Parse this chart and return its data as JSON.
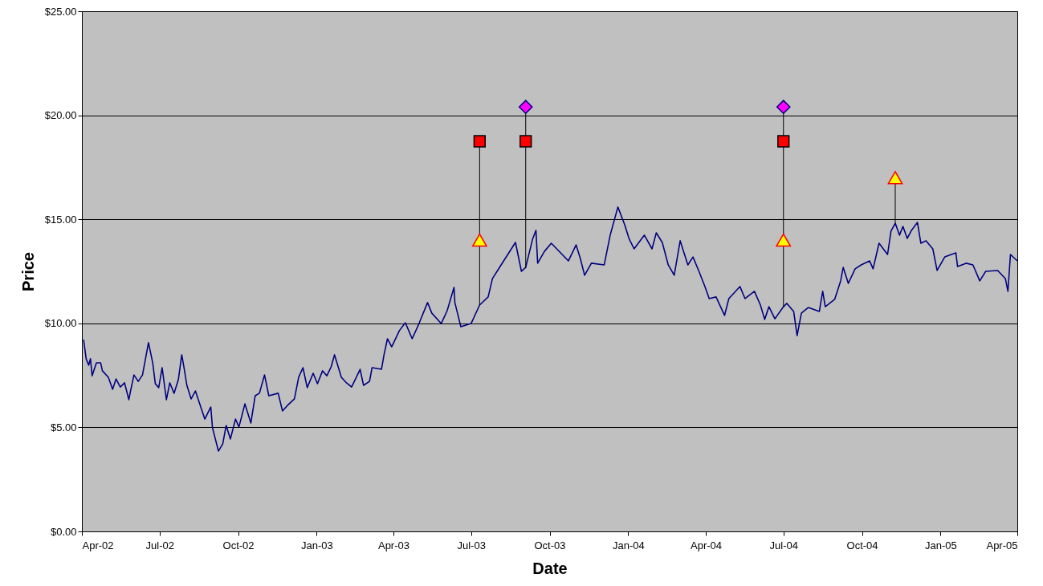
{
  "chart_data": {
    "type": "line",
    "xlabel": "Date",
    "ylabel": "Price",
    "grid": "y",
    "xlim": [
      "2002-04-01",
      "2005-04-01"
    ],
    "ylim": [
      0,
      25
    ],
    "xticks": [
      {
        "value": "2002-04-01",
        "label": "Apr-02"
      },
      {
        "value": "2002-07-01",
        "label": "Jul-02"
      },
      {
        "value": "2002-10-01",
        "label": "Oct-02"
      },
      {
        "value": "2003-01-01",
        "label": "Jan-03"
      },
      {
        "value": "2003-04-01",
        "label": "Apr-03"
      },
      {
        "value": "2003-07-01",
        "label": "Jul-03"
      },
      {
        "value": "2003-10-01",
        "label": "Oct-03"
      },
      {
        "value": "2004-01-01",
        "label": "Jan-04"
      },
      {
        "value": "2004-04-01",
        "label": "Apr-04"
      },
      {
        "value": "2004-07-01",
        "label": "Jul-04"
      },
      {
        "value": "2004-10-01",
        "label": "Oct-04"
      },
      {
        "value": "2005-01-01",
        "label": "Jan-05"
      },
      {
        "value": "2005-04-01",
        "label": "Apr-05"
      }
    ],
    "yticks": [
      {
        "value": 0,
        "label": "$0.00"
      },
      {
        "value": 5,
        "label": "$5.00"
      },
      {
        "value": 10,
        "label": "$10.00"
      },
      {
        "value": 15,
        "label": "$15.00"
      },
      {
        "value": 20,
        "label": "$20.00"
      },
      {
        "value": 25,
        "label": "$25.00"
      }
    ],
    "series": [
      {
        "color": "#000080",
        "marker": "none",
        "x": [
          "2002-04-03",
          "2002-04-06",
          "2002-04-09",
          "2002-04-11",
          "2002-04-13",
          "2002-04-18",
          "2002-04-23",
          "2002-04-25",
          "2002-05-02",
          "2002-05-07",
          "2002-05-11",
          "2002-05-16",
          "2002-05-21",
          "2002-05-26",
          "2002-05-28",
          "2002-06-01",
          "2002-06-06",
          "2002-06-11",
          "2002-06-18",
          "2002-06-23",
          "2002-06-26",
          "2002-06-30",
          "2002-07-04",
          "2002-07-09",
          "2002-07-13",
          "2002-07-18",
          "2002-07-23",
          "2002-07-27",
          "2002-07-30",
          "2002-08-02",
          "2002-08-07",
          "2002-08-12",
          "2002-08-23",
          "2002-08-30",
          "2002-09-01",
          "2002-09-08",
          "2002-09-13",
          "2002-09-17",
          "2002-09-22",
          "2002-09-28",
          "2002-10-02",
          "2002-10-09",
          "2002-10-16",
          "2002-10-21",
          "2002-10-26",
          "2002-11-01",
          "2002-11-06",
          "2002-11-17",
          "2002-11-22",
          "2002-11-28",
          "2002-12-06",
          "2002-12-11",
          "2002-12-16",
          "2002-12-21",
          "2002-12-28",
          "2003-01-02",
          "2003-01-08",
          "2003-01-13",
          "2003-01-18",
          "2003-01-22",
          "2003-01-30",
          "2003-02-05",
          "2003-02-11",
          "2003-02-21",
          "2003-02-25",
          "2003-03-04",
          "2003-03-07",
          "2003-03-18",
          "2003-03-21",
          "2003-03-25",
          "2003-03-30",
          "2003-04-08",
          "2003-04-15",
          "2003-04-23",
          "2003-05-01",
          "2003-05-11",
          "2003-05-16",
          "2003-05-27",
          "2003-06-03",
          "2003-06-11",
          "2003-06-12",
          "2003-06-19",
          "2003-07-01",
          "2003-07-11",
          "2003-07-21",
          "2003-07-26",
          "2003-08-04",
          "2003-08-13",
          "2003-08-22",
          "2003-08-29",
          "2003-09-03",
          "2003-09-11",
          "2003-09-15",
          "2003-09-17",
          "2003-09-25",
          "2003-10-03",
          "2003-10-23",
          "2003-11-01",
          "2003-11-06",
          "2003-11-11",
          "2003-11-19",
          "2003-12-04",
          "2003-12-11",
          "2003-12-20",
          "2003-12-28",
          "2004-01-02",
          "2004-01-08",
          "2004-01-20",
          "2004-01-29",
          "2004-02-03",
          "2004-02-10",
          "2004-02-17",
          "2004-02-24",
          "2004-03-02",
          "2004-03-11",
          "2004-03-17",
          "2004-03-24",
          "2004-03-31",
          "2004-04-05",
          "2004-04-13",
          "2004-04-23",
          "2004-04-28",
          "2004-05-11",
          "2004-05-17",
          "2004-05-28",
          "2004-06-04",
          "2004-06-09",
          "2004-06-14",
          "2004-06-21",
          "2004-07-01",
          "2004-07-05",
          "2004-07-13",
          "2004-07-17",
          "2004-07-22",
          "2004-07-30",
          "2004-08-12",
          "2004-08-16",
          "2004-08-19",
          "2004-08-30",
          "2004-09-06",
          "2004-09-09",
          "2004-09-15",
          "2004-09-23",
          "2004-09-30",
          "2004-10-10",
          "2004-10-14",
          "2004-10-21",
          "2004-10-31",
          "2004-11-04",
          "2004-11-09",
          "2004-11-14",
          "2004-11-18",
          "2004-11-23",
          "2004-11-28",
          "2004-12-05",
          "2004-12-09",
          "2004-12-15",
          "2004-12-23",
          "2004-12-28",
          "2005-01-06",
          "2005-01-19",
          "2005-01-21",
          "2005-01-31",
          "2005-02-08",
          "2005-02-16",
          "2005-02-23",
          "2005-03-09",
          "2005-03-18",
          "2005-03-21",
          "2005-03-24",
          "2005-04-01"
        ],
        "values": [
          9.22,
          8.29,
          7.99,
          8.3,
          7.48,
          8.1,
          8.1,
          7.72,
          7.41,
          6.83,
          7.33,
          6.94,
          7.14,
          6.33,
          6.75,
          7.52,
          7.21,
          7.52,
          9.07,
          8.1,
          7.1,
          6.91,
          7.87,
          6.33,
          7.14,
          6.64,
          7.29,
          8.49,
          7.79,
          7.02,
          6.37,
          6.75,
          5.4,
          5.98,
          4.98,
          3.86,
          4.2,
          5.09,
          4.44,
          5.4,
          5.02,
          6.13,
          5.21,
          6.52,
          6.64,
          7.52,
          6.52,
          6.64,
          5.79,
          6.06,
          6.37,
          7.41,
          7.87,
          6.91,
          7.6,
          7.1,
          7.72,
          7.48,
          7.91,
          8.49,
          7.41,
          7.14,
          6.94,
          7.79,
          7.02,
          7.21,
          7.87,
          7.79,
          8.49,
          9.26,
          8.87,
          9.65,
          10.03,
          9.26,
          9.99,
          11.0,
          10.49,
          9.99,
          10.61,
          11.73,
          11.0,
          9.84,
          9.99,
          10.88,
          11.27,
          12.15,
          12.73,
          13.31,
          13.89,
          12.5,
          12.69,
          14.04,
          14.47,
          12.89,
          13.46,
          13.85,
          13.0,
          13.77,
          13.12,
          12.31,
          12.89,
          12.81,
          14.24,
          15.59,
          14.74,
          14.08,
          13.58,
          14.24,
          13.58,
          14.35,
          13.89,
          12.81,
          12.31,
          13.97,
          12.81,
          13.19,
          12.5,
          11.77,
          11.19,
          11.27,
          10.38,
          11.19,
          11.77,
          11.19,
          11.54,
          10.88,
          10.19,
          10.8,
          10.22,
          10.8,
          10.96,
          10.57,
          9.41,
          10.49,
          10.76,
          10.57,
          11.54,
          10.8,
          11.15,
          12.04,
          12.69,
          11.92,
          12.62,
          12.81,
          13.0,
          12.62,
          13.85,
          13.31,
          14.43,
          14.81,
          14.24,
          14.66,
          14.08,
          14.47,
          14.85,
          13.85,
          13.97,
          13.58,
          12.54,
          13.19,
          13.39,
          12.73,
          12.89,
          12.81,
          12.04,
          12.5,
          12.54,
          12.15,
          11.54,
          13.31,
          13.0
        ]
      },
      {
        "type": "scatter",
        "marker": "triangle",
        "color": "#ffff00",
        "x": [
          "2003-07-11",
          "2004-07-01",
          "2004-11-09"
        ],
        "values": [
          14,
          14,
          17
        ]
      },
      {
        "type": "scatter",
        "marker": "square",
        "color": "#ff0000",
        "x": [
          "2003-07-11",
          "2003-09-03",
          "2004-07-01"
        ],
        "values": [
          18.75,
          18.75,
          18.75
        ]
      },
      {
        "type": "scatter",
        "marker": "diamond",
        "color": "#ff00ff",
        "x": [
          "2003-09-03",
          "2004-07-01"
        ],
        "values": [
          20.4,
          20.4
        ]
      }
    ]
  }
}
